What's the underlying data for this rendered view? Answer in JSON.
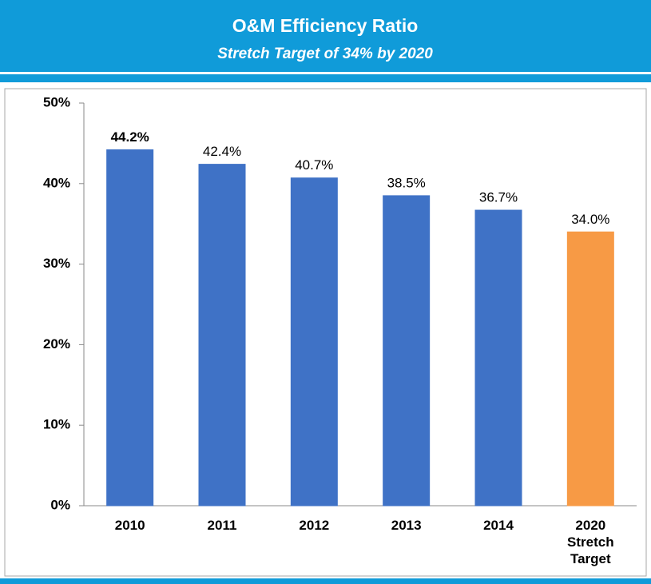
{
  "chart_data": {
    "type": "bar",
    "title": "O&M Efficiency Ratio",
    "subtitle": "Stretch Target of 34% by 2020",
    "categories": [
      "2010",
      "2011",
      "2012",
      "2013",
      "2014",
      "2020\nStretch\nTarget"
    ],
    "values": [
      44.2,
      42.4,
      40.7,
      38.5,
      36.7,
      34.0
    ],
    "value_labels": [
      "44.2%",
      "42.4%",
      "40.7%",
      "38.5%",
      "36.7%",
      "34.0%"
    ],
    "colors": [
      "#3f72c6",
      "#3f72c6",
      "#3f72c6",
      "#3f72c6",
      "#3f72c6",
      "#f79a45"
    ],
    "ylim": [
      0,
      50
    ],
    "yticks": [
      {
        "value": 0,
        "label": "0%"
      },
      {
        "value": 10,
        "label": "10%"
      },
      {
        "value": 20,
        "label": "20%"
      },
      {
        "value": 30,
        "label": "30%"
      },
      {
        "value": 40,
        "label": "40%"
      },
      {
        "value": 50,
        "label": "50%"
      }
    ],
    "grid": false
  }
}
